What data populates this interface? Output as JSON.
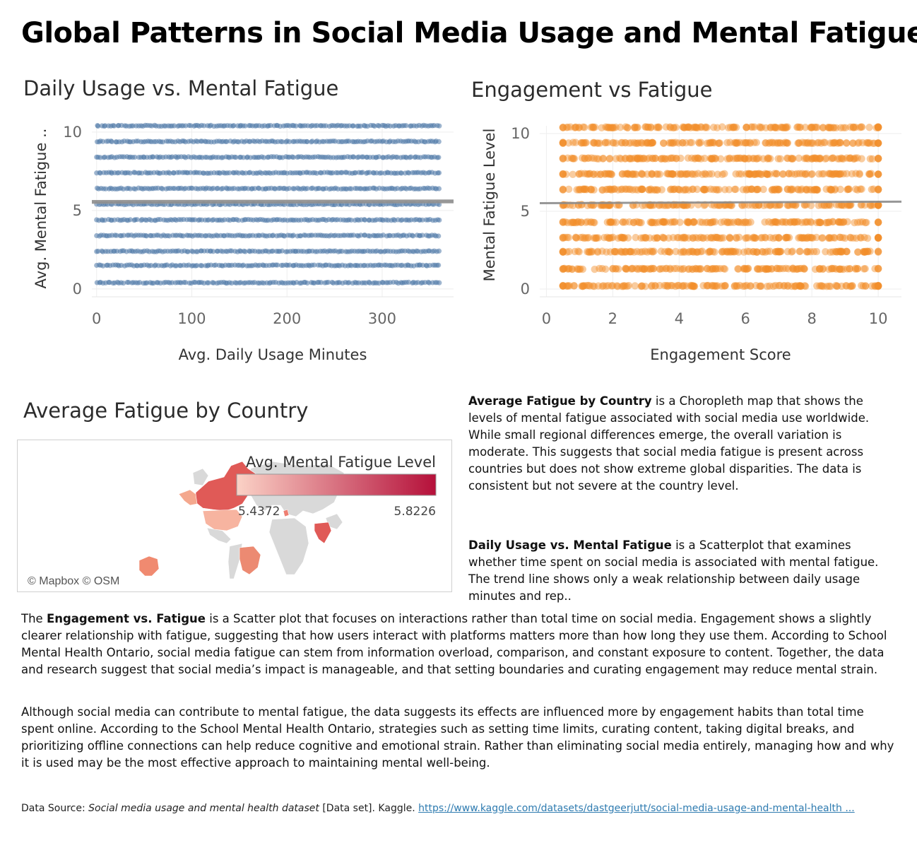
{
  "page_title": "Global Patterns in Social Media Usage and Mental Fatigue",
  "chart_data": [
    {
      "type": "scatter",
      "title": "Daily Usage vs. Mental Fatigue",
      "xlabel": "Avg. Daily Usage Minutes",
      "ylabel": "Avg. Mental Fatigue ..",
      "xlim": [
        -5,
        375
      ],
      "ylim": [
        -0.5,
        10.4
      ],
      "x_ticks": [
        0,
        100,
        200,
        300
      ],
      "y_ticks": [
        0,
        5,
        10
      ],
      "fatigue_levels": [
        0.4,
        1.5,
        2.4,
        3.4,
        4.4,
        5.4,
        6.4,
        7.4,
        8.4,
        9.4,
        10.4
      ],
      "x_range": [
        0,
        360
      ],
      "trend_line": {
        "x": [
          -5,
          375
        ],
        "y": [
          5.55,
          5.58
        ]
      },
      "color": "#4e79a7",
      "grid": true
    },
    {
      "type": "scatter",
      "title": "Engagement vs Fatigue",
      "xlabel": "Engagement Score",
      "ylabel": "Mental Fatigue Level",
      "xlim": [
        -0.2,
        10.7
      ],
      "ylim": [
        -0.5,
        10.5
      ],
      "x_ticks": [
        0,
        2,
        4,
        6,
        8,
        10
      ],
      "y_ticks": [
        0,
        5,
        10
      ],
      "fatigue_levels": [
        0.2,
        1.3,
        2.4,
        3.3,
        4.3,
        5.4,
        6.4,
        7.4,
        8.4,
        9.4,
        10.4
      ],
      "x_range": [
        0.5,
        10
      ],
      "trend_line": {
        "x": [
          -0.2,
          10.7
        ],
        "y": [
          5.52,
          5.62
        ]
      },
      "color": "#f28e2b",
      "grid": true
    }
  ],
  "map": {
    "title": "Average Fatigue by Country",
    "legend_title": "Avg. Mental Fatigue Level",
    "legend_min": "5.4372",
    "legend_max": "5.8226",
    "legend_colors": [
      "#fbd2c6",
      "#b5103a"
    ],
    "attribution": "© Mapbox © OSM",
    "land_color": "#d9d9d9"
  },
  "text": {
    "map_desc_bold": "Average Fatigue by Country",
    "map_desc": " is a Choropleth map that shows the levels of mental fatigue associated with social media use worldwide. While small regional differences emerge, the overall variation is moderate. This suggests that social media fatigue is present across countries but does not show extreme global disparities. The data is consistent but not severe at the country level.",
    "usage_desc_bold": "Daily Usage vs. Mental Fatigue",
    "usage_desc": " is a Scatterplot that examines whether time spent on social media is associated with mental fatigue. The trend line shows only a weak relationship between daily usage minutes and rep..",
    "engage_prefix": "The ",
    "engage_bold": "Engagement vs. Fatigue",
    "engage_desc": " is a Scatter plot that focuses on interactions  rather than total time on social media. Engagement shows a slightly clearer relationship with fatigue, suggesting that how users interact with platforms matters more than how long they use them. According to School Mental Health Ontario, social media fatigue can stem from information overload, comparison, and constant exposure to content. Together, the data and research suggest that social media’s impact is manageable, and that setting boundaries and curating engagement may reduce mental strain.",
    "conclusion": "Although social media can contribute to mental fatigue, the data suggests its effects are influenced more by engagement habits than total time spent online. According to the School Mental Health Ontario, strategies such as setting time limits, curating content, taking digital breaks, and prioritizing offline connections can help reduce cognitive and emotional strain. Rather than eliminating social media entirely, managing how and why it is used may be the most effective approach to maintaining mental well-being."
  },
  "source": {
    "prefix": "Data Source: ",
    "title": "Social media usage and mental health dataset",
    "middle": "  [Data set]. Kaggle. ",
    "link": "https://www.kaggle.com/datasets/dastgeerjutt/social-media-usage-and-mental-health ..."
  }
}
